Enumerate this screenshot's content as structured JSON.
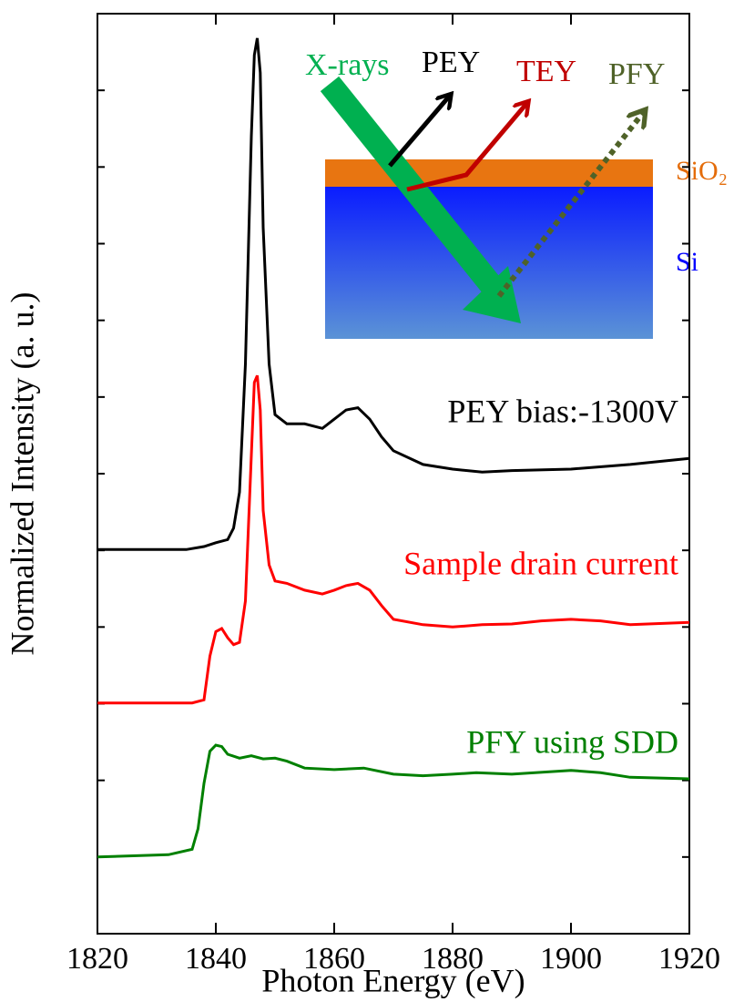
{
  "chart_data": {
    "type": "line",
    "xlabel": "Photon Energy (eV)",
    "ylabel": "Normalized Intensity (a. u.)",
    "xlim": [
      1820,
      1920
    ],
    "xticks": [
      1820,
      1840,
      1860,
      1880,
      1900,
      1920
    ],
    "ylim": [
      0,
      12
    ],
    "yticks": [
      0,
      1,
      2,
      3,
      4,
      5,
      6,
      7,
      8,
      9,
      10,
      11,
      12
    ],
    "series": [
      {
        "name": "PEY bias:-1300V",
        "color": "#000000",
        "x": [
          1820,
          1835,
          1838,
          1840,
          1842,
          1843,
          1844,
          1845,
          1846,
          1846.5,
          1847,
          1847.5,
          1848,
          1849,
          1850,
          1852,
          1855,
          1858,
          1860,
          1862,
          1864,
          1866,
          1868,
          1870,
          1875,
          1880,
          1885,
          1890,
          1900,
          1910,
          1920
        ],
        "values": [
          5.01,
          5.01,
          5.05,
          5.1,
          5.14,
          5.29,
          5.76,
          7.43,
          10.4,
          11.46,
          11.68,
          11.23,
          9.21,
          7.43,
          6.77,
          6.65,
          6.65,
          6.59,
          6.71,
          6.83,
          6.86,
          6.71,
          6.48,
          6.3,
          6.12,
          6.06,
          6.02,
          6.04,
          6.06,
          6.12,
          6.2
        ]
      },
      {
        "name": "Sample drain current",
        "color": "#ff0000",
        "x": [
          1820,
          1836,
          1838,
          1839,
          1840,
          1841,
          1842,
          1843,
          1844,
          1845,
          1846,
          1846.5,
          1847,
          1847.5,
          1848,
          1849,
          1850,
          1852,
          1855,
          1858,
          1860,
          1862,
          1864,
          1866,
          1868,
          1870,
          1875,
          1880,
          1885,
          1890,
          1895,
          1900,
          1905,
          1910,
          1920
        ],
        "values": [
          3.01,
          3.01,
          3.05,
          3.62,
          3.94,
          3.98,
          3.86,
          3.77,
          3.8,
          4.34,
          6.24,
          7.19,
          7.28,
          6.83,
          5.52,
          4.81,
          4.6,
          4.57,
          4.48,
          4.43,
          4.48,
          4.54,
          4.57,
          4.48,
          4.28,
          4.1,
          4.03,
          4.0,
          4.03,
          4.04,
          4.08,
          4.1,
          4.08,
          4.03,
          4.06
        ]
      },
      {
        "name": "PFY using SDD",
        "color": "#008000",
        "x": [
          1820,
          1832,
          1836,
          1837,
          1838,
          1839,
          1840,
          1841,
          1842,
          1844,
          1846,
          1848,
          1850,
          1852,
          1855,
          1860,
          1865,
          1870,
          1875,
          1880,
          1884,
          1890,
          1900,
          1905,
          1910,
          1920
        ],
        "values": [
          1.0,
          1.03,
          1.1,
          1.37,
          1.96,
          2.38,
          2.46,
          2.44,
          2.34,
          2.29,
          2.32,
          2.28,
          2.29,
          2.25,
          2.16,
          2.14,
          2.16,
          2.08,
          2.06,
          2.08,
          2.1,
          2.08,
          2.13,
          2.1,
          2.04,
          2.02
        ]
      }
    ],
    "annotations": [
      {
        "text": "X-rays",
        "color": "#00b050"
      },
      {
        "text": "PEY",
        "color": "#000000"
      },
      {
        "text": "TEY",
        "color": "#c00000"
      },
      {
        "text": "PFY",
        "color": "#4f6228"
      },
      {
        "text": "SiO₂",
        "color": "#e46c0a"
      },
      {
        "text": "Si",
        "color": "#0000ff"
      }
    ]
  }
}
